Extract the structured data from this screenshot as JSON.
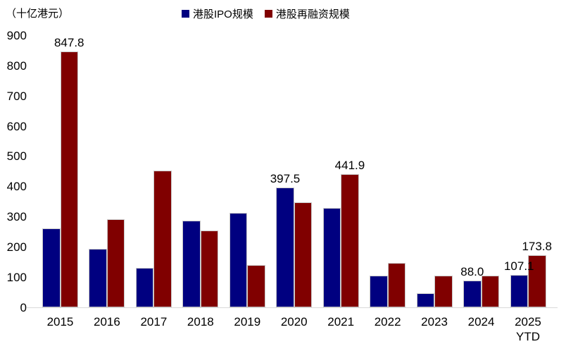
{
  "unit_label": "（十亿港元）",
  "colors": {
    "ipo_bar": "#000080",
    "refinancing_bar": "#800000",
    "axis_line": "#d9d9d9",
    "bar_outline": "#c8c8c8",
    "text": "#000000"
  },
  "chart_data": {
    "type": "bar",
    "title": "",
    "unit": "十亿港元",
    "categories": [
      "2015",
      "2016",
      "2017",
      "2018",
      "2019",
      "2020",
      "2021",
      "2022",
      "2023",
      "2024",
      "2025\nYTD"
    ],
    "series": [
      {
        "name": "港股IPO规模",
        "color": "#000080",
        "values": [
          261,
          194,
          130,
          287,
          314,
          397.5,
          330,
          105,
          46,
          88,
          107.1
        ]
      },
      {
        "name": "港股再融资规模",
        "color": "#800000",
        "values": [
          847.8,
          292,
          453,
          255,
          140,
          347,
          441.9,
          148,
          105,
          104,
          173.8
        ]
      }
    ],
    "data_labels": [
      {
        "series": 1,
        "category_index": 0,
        "text": "847.8"
      },
      {
        "series": 0,
        "category_index": 5,
        "text": "397.5"
      },
      {
        "series": 1,
        "category_index": 6,
        "text": "441.9"
      },
      {
        "series": 0,
        "category_index": 9,
        "text": "88.0"
      },
      {
        "series": 0,
        "category_index": 10,
        "text": "107.1"
      },
      {
        "series": 1,
        "category_index": 10,
        "text": "173.8"
      }
    ],
    "ylim": [
      0,
      900
    ],
    "ytick_step": 100,
    "yticks": [
      0,
      100,
      200,
      300,
      400,
      500,
      600,
      700,
      800,
      900
    ],
    "grid": false,
    "legend_position": "top-center"
  }
}
